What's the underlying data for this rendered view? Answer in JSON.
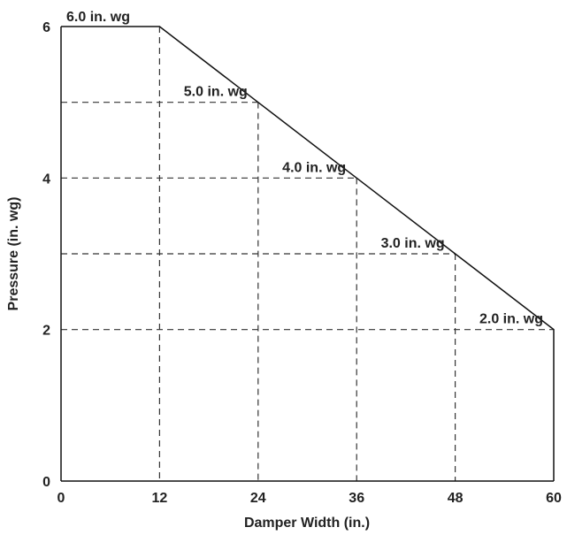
{
  "chart_data": {
    "type": "line",
    "xlabel": "Damper Width (in.)",
    "ylabel": "Pressure (in. wg)",
    "xlim": [
      0,
      60
    ],
    "ylim": [
      0,
      6
    ],
    "xticks": [
      "0",
      "12",
      "24",
      "36",
      "48",
      "60"
    ],
    "yticks": [
      "0",
      "2",
      "4",
      "6"
    ],
    "grid": false,
    "series": [
      {
        "x": [
          0,
          12,
          24,
          36,
          48,
          60,
          60
        ],
        "y": [
          6,
          6,
          5,
          4,
          3,
          2,
          0
        ]
      }
    ],
    "annotations": [
      {
        "text": "6.0 in. wg",
        "x": 12,
        "y": 6
      },
      {
        "text": "5.0 in. wg",
        "x": 24,
        "y": 5
      },
      {
        "text": "4.0 in. wg",
        "x": 36,
        "y": 4
      },
      {
        "text": "3.0 in. wg",
        "x": 48,
        "y": 3
      },
      {
        "text": "2.0 in. wg",
        "x": 60,
        "y": 2
      }
    ],
    "colors": {
      "line": "#111111",
      "dash": "#333333",
      "text": "#222222"
    }
  }
}
